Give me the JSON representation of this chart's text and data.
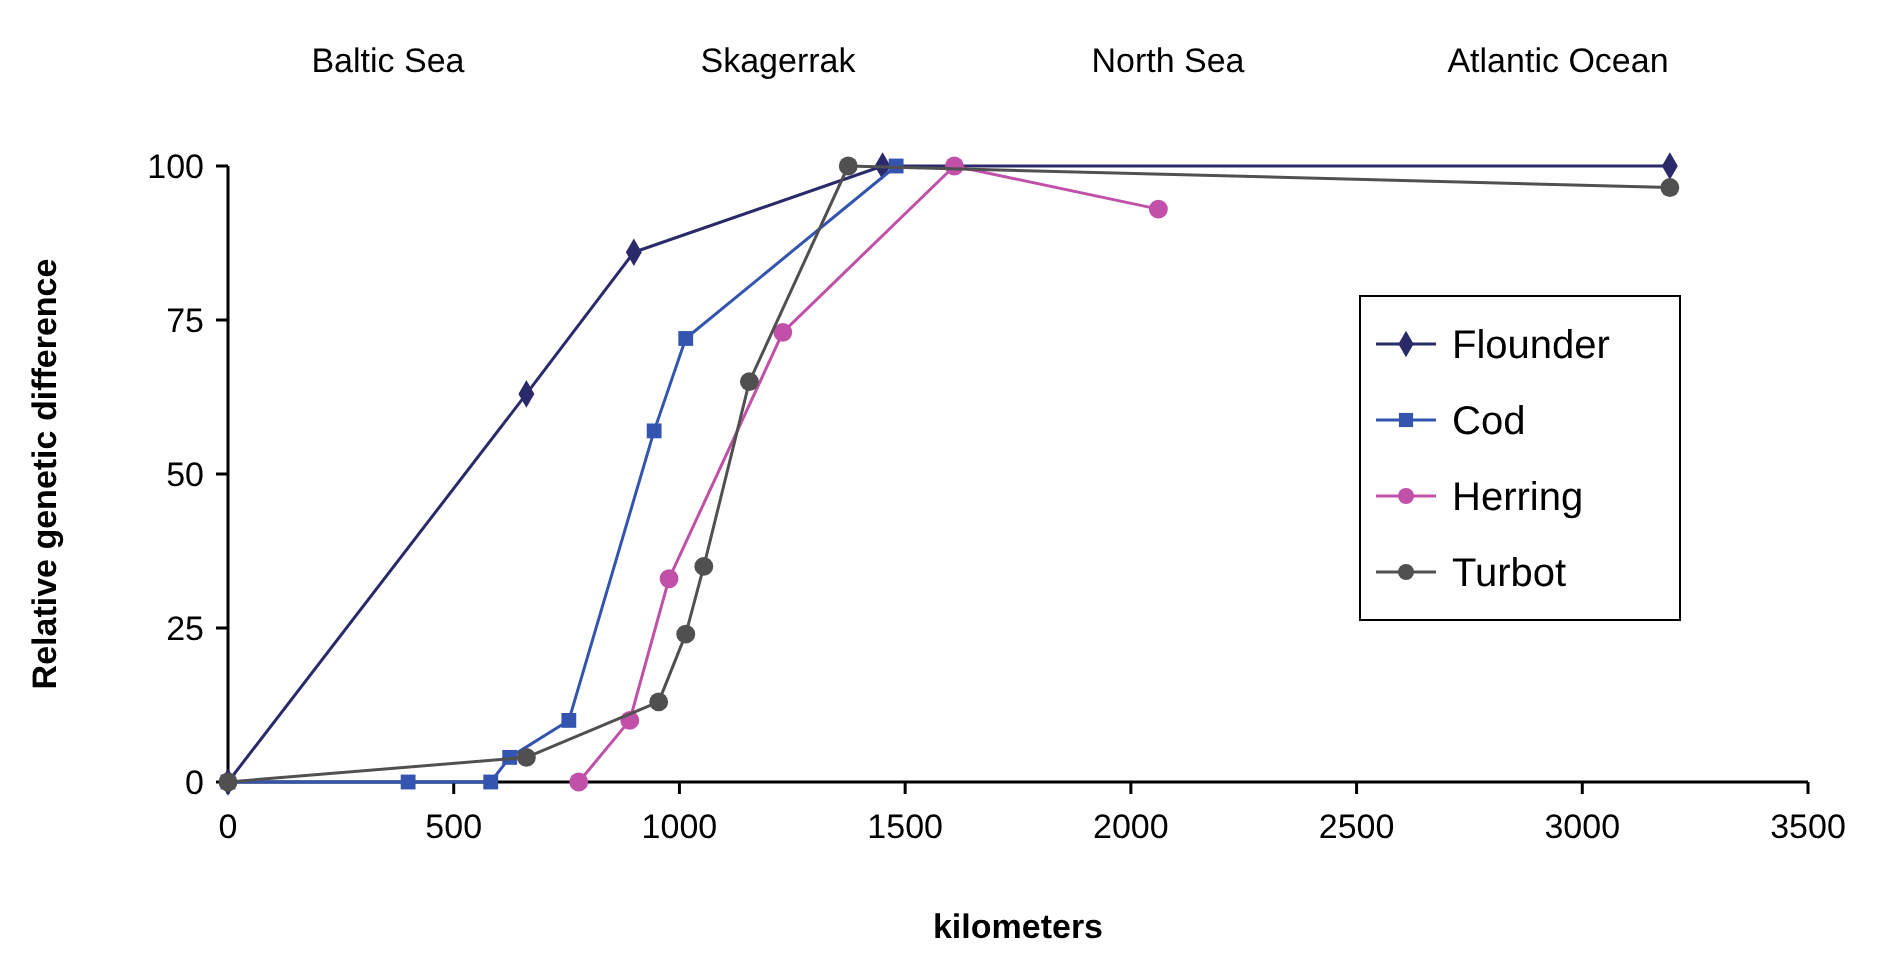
{
  "chart_data": {
    "type": "line",
    "xlabel": "kilometers",
    "ylabel": "Relative genetic difference",
    "annotations": [
      "Baltic Sea",
      "Skagerrak",
      "North Sea",
      "Atlantic Ocean"
    ],
    "xlim": [
      0,
      3500
    ],
    "xticks": [
      0,
      500,
      1000,
      1500,
      2000,
      2500,
      3000,
      3500
    ],
    "ylim": [
      0,
      100
    ],
    "yticks": [
      0,
      25,
      50,
      75,
      100
    ],
    "grid": false,
    "legend": "right",
    "series": [
      {
        "name": "Flounder",
        "color": "#2a2a6a",
        "marker": "diamond",
        "x": [
          0,
          661,
          899,
          1450,
          3194
        ],
        "values": [
          0,
          63,
          86,
          100,
          100
        ]
      },
      {
        "name": "Cod",
        "color": "#3355b0",
        "marker": "square",
        "x": [
          0,
          399,
          582,
          624,
          755,
          944,
          1014,
          1480
        ],
        "values": [
          0,
          0,
          0,
          4,
          10,
          57,
          72,
          100
        ]
      },
      {
        "name": "Herring",
        "color": "#c050a8",
        "marker": "circle",
        "x": [
          777,
          890,
          977,
          1229,
          1609,
          2061
        ],
        "values": [
          0,
          10,
          33,
          73,
          100,
          93
        ]
      },
      {
        "name": "Turbot",
        "color": "#505050",
        "marker": "circle",
        "x": [
          0,
          661,
          954,
          1014,
          1054,
          1155,
          1374,
          3194
        ],
        "values": [
          0,
          4,
          13,
          24,
          35,
          65,
          100,
          96.5
        ]
      }
    ]
  }
}
